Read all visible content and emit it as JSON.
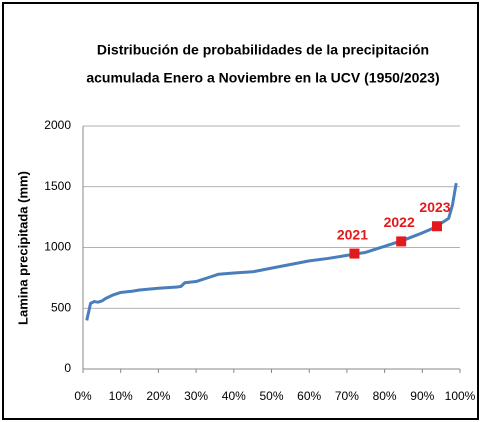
{
  "chart_data": {
    "type": "line",
    "title": [
      "Distribución de probabilidades de la precipitación",
      "acumulada Enero a Noviembre en la UCV (1950/2023)"
    ],
    "y_label": "Lamina precipitada (mm)",
    "x": [
      1,
      2,
      3,
      4,
      5,
      6,
      8,
      10,
      13,
      15,
      20,
      25,
      26,
      27,
      30,
      33,
      36,
      40,
      45,
      50,
      55,
      60,
      65,
      70,
      75,
      80,
      85,
      90,
      93,
      95,
      97,
      98,
      99
    ],
    "series": [
      {
        "color": "#4a7ebb",
        "values": [
          400,
          540,
          555,
          550,
          560,
          580,
          610,
          630,
          640,
          650,
          665,
          675,
          680,
          710,
          720,
          750,
          780,
          790,
          800,
          830,
          860,
          890,
          910,
          935,
          960,
          1010,
          1060,
          1120,
          1160,
          1200,
          1240,
          1350,
          1530
        ]
      }
    ],
    "highlights": [
      {
        "label": "2021",
        "x": 72,
        "value": 950
      },
      {
        "label": "2022",
        "x": 84.4,
        "value": 1050
      },
      {
        "label": "2023",
        "x": 93.9,
        "value": 1175
      }
    ],
    "highlight_color": "#e31a1c",
    "xlim": [
      0,
      100
    ],
    "xticks": [
      {
        "value": 0,
        "label": "0%"
      },
      {
        "value": 10,
        "label": "10%"
      },
      {
        "value": 20,
        "label": "20%"
      },
      {
        "value": 30,
        "label": "30%"
      },
      {
        "value": 40,
        "label": "40%"
      },
      {
        "value": 50,
        "label": "50%"
      },
      {
        "value": 60,
        "label": "60%"
      },
      {
        "value": 70,
        "label": "70%"
      },
      {
        "value": 80,
        "label": "80%"
      },
      {
        "value": 90,
        "label": "90%"
      },
      {
        "value": 100,
        "label": "100%"
      }
    ],
    "ylim": [
      0,
      2000
    ],
    "yticks": [
      0,
      500,
      1000,
      1500,
      2000
    ],
    "grid": true
  }
}
